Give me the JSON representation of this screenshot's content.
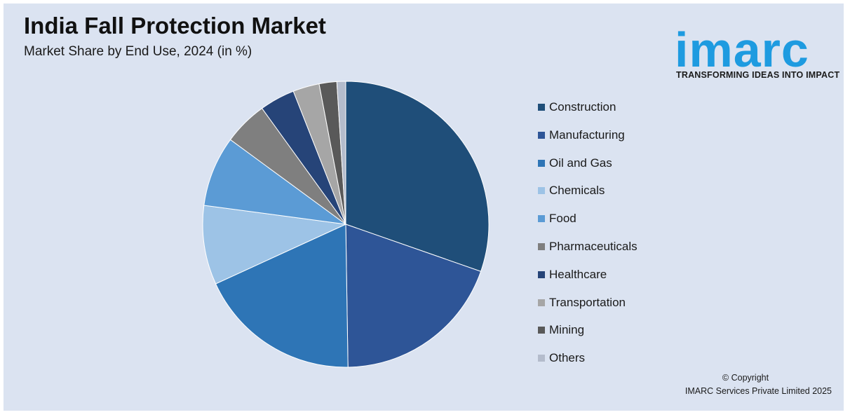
{
  "header": {
    "title": "India Fall Protection Market",
    "subtitle": "Market Share by End Use, 2024 (in %)"
  },
  "logo": {
    "wordmark": "imarc",
    "tagline": "TRANSFORMING IDEAS INTO IMPACT",
    "color": "#1e9be0"
  },
  "footer": {
    "copyright_line1": "© Copyright",
    "copyright_line2": "IMARC Services Private Limited 2025"
  },
  "chart_data": {
    "type": "pie",
    "title": "India Fall Protection Market",
    "subtitle": "Market Share by End Use, 2024 (in %)",
    "start_angle_deg": 0,
    "direction": "clockwise",
    "legend_position": "right",
    "categories": [
      "Construction",
      "Manufacturing",
      "Oil and Gas",
      "Chemicals",
      "Food",
      "Pharmaceuticals",
      "Healthcare",
      "Transportation",
      "Mining",
      "Others"
    ],
    "values": [
      30.5,
      19.5,
      18.5,
      9.0,
      8.0,
      5.0,
      4.0,
      3.0,
      2.0,
      1.0
    ],
    "colors": [
      "#1f4e79",
      "#2e5597",
      "#2e75b6",
      "#9dc3e6",
      "#5b9bd5",
      "#7f7f7f",
      "#264478",
      "#a6a6a6",
      "#595959",
      "#b4bccc"
    ]
  }
}
